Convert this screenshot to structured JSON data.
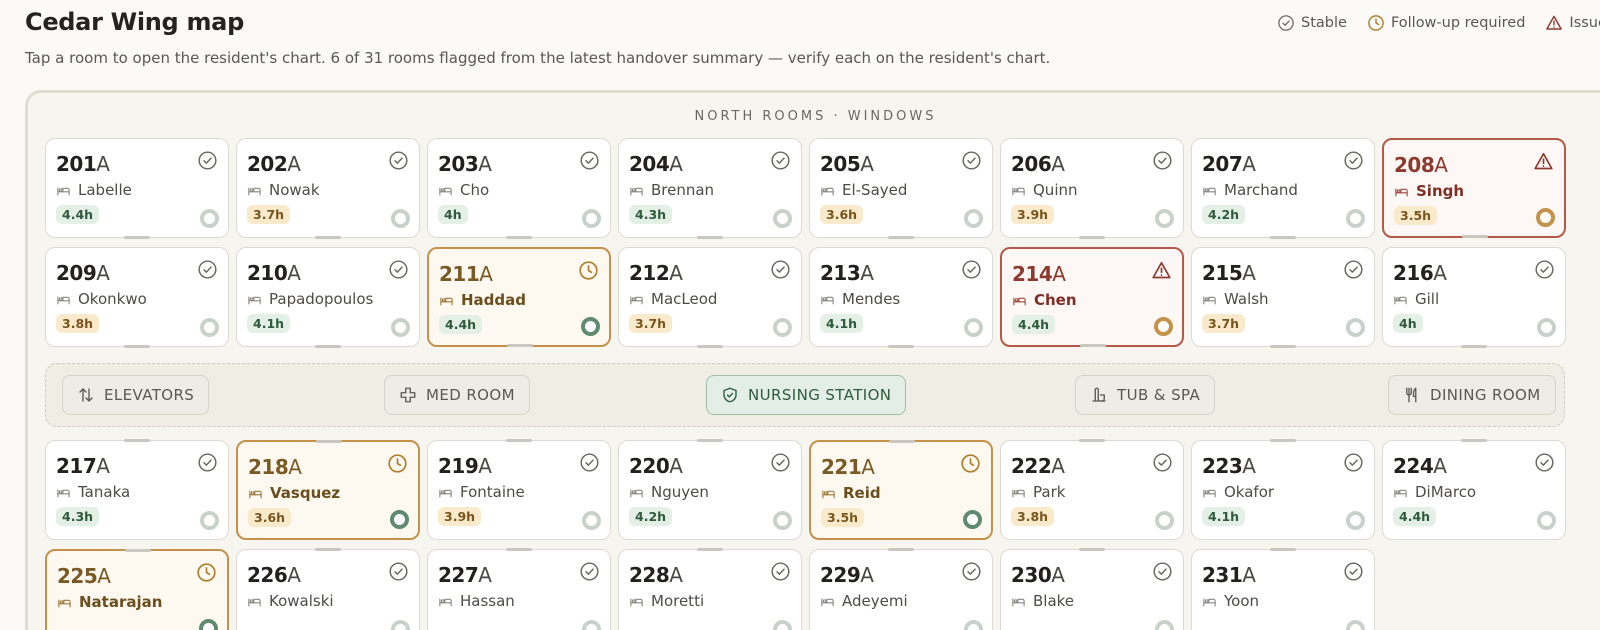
{
  "header": {
    "title": "Cedar Wing map",
    "subtitle": "Tap a room to open the resident's chart. 6 of 31 rooms flagged from the latest handover summary — verify each on the resident's chart."
  },
  "legend": [
    {
      "label": "Stable",
      "icon": "check-circle-icon",
      "color": "#6a6860"
    },
    {
      "label": "Follow-up required",
      "icon": "clock-icon",
      "color": "#b07e2c"
    },
    {
      "label": "Issue",
      "icon": "warning-triangle-icon",
      "color": "#8c3a2e"
    }
  ],
  "map": {
    "section_label": "NORTH ROOMS · WINDOWS",
    "room_suffix": "A",
    "rows": [
      [
        {
          "number": "201",
          "resident": "Labelle",
          "duration": "4.4h",
          "status": "stable"
        },
        {
          "number": "202",
          "resident": "Nowak",
          "duration": "3.7h",
          "status": "stable"
        },
        {
          "number": "203",
          "resident": "Cho",
          "duration": "4h",
          "status": "stable"
        },
        {
          "number": "204",
          "resident": "Brennan",
          "duration": "4.3h",
          "status": "stable"
        },
        {
          "number": "205",
          "resident": "El-Sayed",
          "duration": "3.6h",
          "status": "stable"
        },
        {
          "number": "206",
          "resident": "Quinn",
          "duration": "3.9h",
          "status": "stable"
        },
        {
          "number": "207",
          "resident": "Marchand",
          "duration": "4.2h",
          "status": "stable"
        },
        {
          "number": "208",
          "resident": "Singh",
          "duration": "3.5h",
          "status": "issue"
        }
      ],
      [
        {
          "number": "209",
          "resident": "Okonkwo",
          "duration": "3.8h",
          "status": "stable"
        },
        {
          "number": "210",
          "resident": "Papadopoulos",
          "duration": "4.1h",
          "status": "stable"
        },
        {
          "number": "211",
          "resident": "Haddad",
          "duration": "4.4h",
          "status": "followup"
        },
        {
          "number": "212",
          "resident": "MacLeod",
          "duration": "3.7h",
          "status": "stable"
        },
        {
          "number": "213",
          "resident": "Mendes",
          "duration": "4.1h",
          "status": "stable"
        },
        {
          "number": "214",
          "resident": "Chen",
          "duration": "4.4h",
          "status": "issue"
        },
        {
          "number": "215",
          "resident": "Walsh",
          "duration": "3.7h",
          "status": "stable"
        },
        {
          "number": "216",
          "resident": "Gill",
          "duration": "4h",
          "status": "stable"
        }
      ],
      [
        {
          "number": "217",
          "resident": "Tanaka",
          "duration": "4.3h",
          "status": "stable"
        },
        {
          "number": "218",
          "resident": "Vasquez",
          "duration": "3.6h",
          "status": "followup"
        },
        {
          "number": "219",
          "resident": "Fontaine",
          "duration": "3.9h",
          "status": "stable"
        },
        {
          "number": "220",
          "resident": "Nguyen",
          "duration": "4.2h",
          "status": "stable"
        },
        {
          "number": "221",
          "resident": "Reid",
          "duration": "3.5h",
          "status": "followup"
        },
        {
          "number": "222",
          "resident": "Park",
          "duration": "3.8h",
          "status": "stable"
        },
        {
          "number": "223",
          "resident": "Okafor",
          "duration": "4.1h",
          "status": "stable"
        },
        {
          "number": "224",
          "resident": "DiMarco",
          "duration": "4.4h",
          "status": "stable"
        }
      ],
      [
        {
          "number": "225",
          "resident": "Natarajan",
          "duration": "",
          "status": "followup"
        },
        {
          "number": "226",
          "resident": "Kowalski",
          "duration": "",
          "status": "stable"
        },
        {
          "number": "227",
          "resident": "Hassan",
          "duration": "",
          "status": "stable"
        },
        {
          "number": "228",
          "resident": "Moretti",
          "duration": "",
          "status": "stable"
        },
        {
          "number": "229",
          "resident": "Adeyemi",
          "duration": "",
          "status": "stable"
        },
        {
          "number": "230",
          "resident": "Blake",
          "duration": "",
          "status": "stable"
        },
        {
          "number": "231",
          "resident": "Yoon",
          "duration": "",
          "status": "stable"
        }
      ]
    ]
  },
  "corridor": [
    {
      "label": "ELEVATORS",
      "icon": "elevator-arrows-icon",
      "highlight": false
    },
    {
      "label": "MED ROOM",
      "icon": "medical-cross-icon",
      "highlight": false
    },
    {
      "label": "NURSING STATION",
      "icon": "shield-check-icon",
      "highlight": true
    },
    {
      "label": "TUB & SPA",
      "icon": "bathtub-icon",
      "highlight": false
    },
    {
      "label": "DINING ROOM",
      "icon": "fork-knife-icon",
      "highlight": false
    }
  ],
  "colors": {
    "stable": "#6a6860",
    "followup": "#c4924a",
    "issue": "#b5594a",
    "green_badge": "#e4efe6",
    "amber_badge": "#f8eacb",
    "station": "#e2eee6"
  }
}
